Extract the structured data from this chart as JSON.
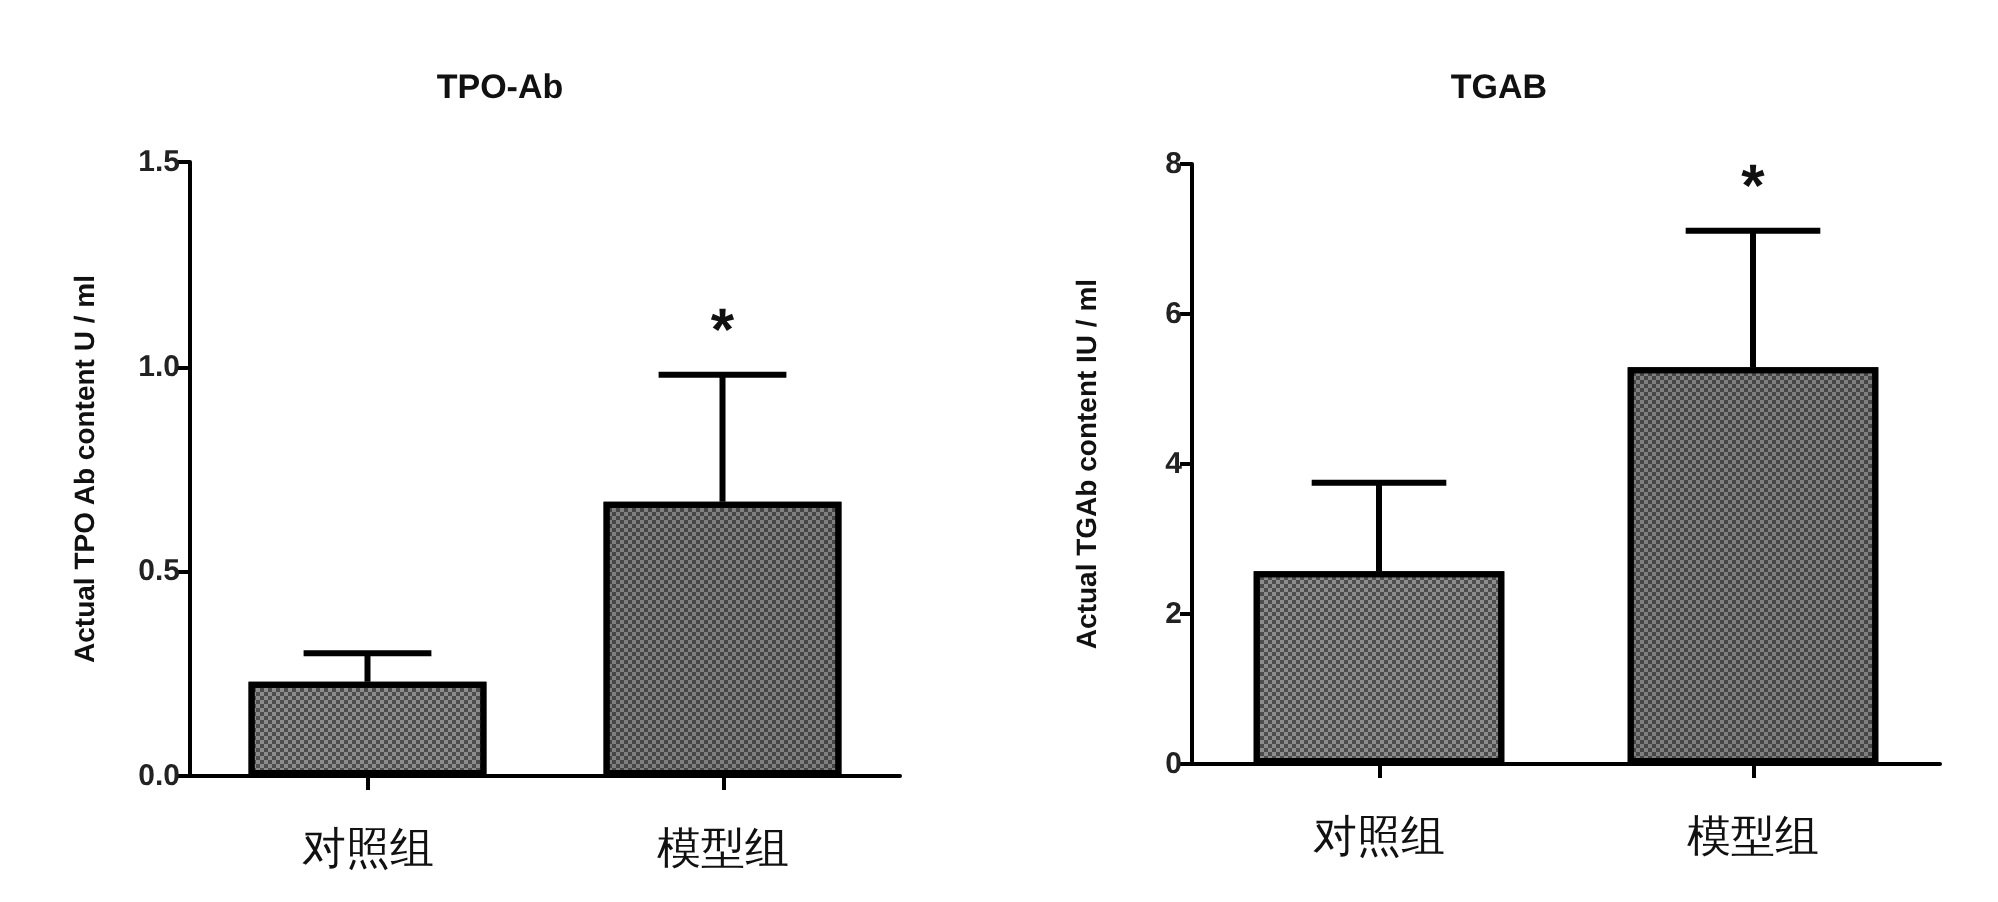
{
  "chart_data": [
    {
      "type": "bar",
      "title": "TPO-Ab",
      "ylabel": "Actual TPO Ab content U / ml",
      "categories": [
        "对照组",
        "模型组"
      ],
      "values": [
        0.23,
        0.67
      ],
      "errors": [
        0.07,
        0.31
      ],
      "colors": [
        "#8c8c8c",
        "#7f7f7f"
      ],
      "ylim": [
        0,
        1.5
      ],
      "yticks": [
        {
          "value": 0,
          "label": "0.0"
        },
        {
          "value": 0.5,
          "label": "0.5"
        },
        {
          "value": 1,
          "label": "1.0"
        },
        {
          "value": 1.5,
          "label": "1.5"
        }
      ],
      "annotations": [
        "*"
      ]
    },
    {
      "type": "bar",
      "title": "TGAB",
      "ylabel": "Actual TGAb content IU / ml",
      "categories": [
        "对照组",
        "模型组"
      ],
      "values": [
        2.57,
        5.29
      ],
      "errors": [
        1.18,
        1.82
      ],
      "colors": [
        "#8c8c8c",
        "#7f7f7f"
      ],
      "ylim": [
        0,
        8
      ],
      "yticks": [
        0,
        2,
        4,
        6,
        8
      ],
      "annotations": [
        "*"
      ]
    }
  ]
}
